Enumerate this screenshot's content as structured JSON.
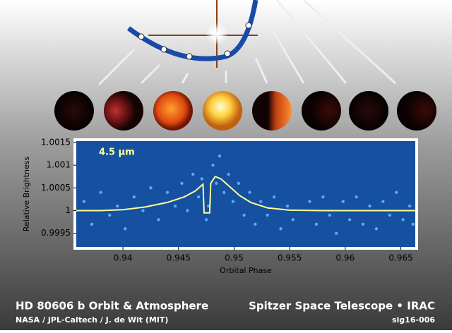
{
  "chart_data": {
    "type": "scatter",
    "label": "4.5 µm",
    "x_label": "Orbital Phase",
    "y_label": "Relative Brightness",
    "xlim": [
      0.9358,
      0.9663
    ],
    "ylim": [
      0.9992,
      1.00153
    ],
    "xticks": [
      0.94,
      0.945,
      0.95,
      0.955,
      0.96,
      0.965
    ],
    "yticks": [
      0.9995,
      1,
      1.0005,
      1.001,
      1.0015
    ],
    "background": "#1650a0",
    "series": [
      {
        "type": "scatter",
        "color": "#55aaff",
        "x": [
          0.9365,
          0.9372,
          0.938,
          0.9388,
          0.9395,
          0.9402,
          0.941,
          0.9418,
          0.9425,
          0.9432,
          0.944,
          0.9447,
          0.9453,
          0.9458,
          0.9463,
          0.9468,
          0.9471,
          0.9475,
          0.9477,
          0.9481,
          0.9484,
          0.9487,
          0.9491,
          0.9495,
          0.9499,
          0.9504,
          0.9509,
          0.9514,
          0.9519,
          0.9524,
          0.953,
          0.9536,
          0.9542,
          0.9548,
          0.9553,
          0.9568,
          0.9574,
          0.958,
          0.9586,
          0.9592,
          0.9598,
          0.9604,
          0.961,
          0.9616,
          0.9622,
          0.9628,
          0.9634,
          0.964,
          0.9646,
          0.9652,
          0.9658,
          0.9661
        ],
        "values": [
          1.0002,
          0.9997,
          1.0004,
          0.9999,
          1.0001,
          0.9996,
          1.0003,
          1.0,
          1.0005,
          0.9998,
          1.0004,
          1.0001,
          1.0006,
          1.0,
          1.0008,
          1.0003,
          1.0007,
          0.9998,
          1.0001,
          1.001,
          1.0006,
          1.0012,
          1.0004,
          1.0008,
          1.0002,
          1.0006,
          0.9999,
          1.0004,
          0.9997,
          1.0002,
          0.9999,
          1.0003,
          0.9996,
          1.0001,
          0.9998,
          1.0002,
          0.9997,
          1.0003,
          0.9999,
          0.9995,
          1.0002,
          0.9998,
          1.0003,
          0.9997,
          1.0001,
          0.9996,
          1.0002,
          0.9999,
          1.0004,
          0.9998,
          1.0001,
          0.9997
        ]
      },
      {
        "type": "line",
        "color": "#ffff99",
        "x": [
          0.9358,
          0.938,
          0.94,
          0.942,
          0.944,
          0.9455,
          0.9465,
          0.9472,
          0.9473,
          0.9478,
          0.9479,
          0.9483,
          0.9488,
          0.9495,
          0.9505,
          0.9515,
          0.953,
          0.955,
          0.958,
          0.9663
        ],
        "values": [
          1.0,
          1.0,
          1.00002,
          1.00008,
          1.00018,
          1.0003,
          1.00043,
          1.00058,
          0.99995,
          0.99995,
          1.0006,
          1.00075,
          1.0007,
          1.00055,
          1.00033,
          1.00018,
          1.00006,
          1.00001,
          1.0,
          1.0
        ]
      }
    ]
  },
  "footer": {
    "title": "HD 80606 b Orbit & Atmosphere",
    "credit": "NASA / JPL-Caltech / J. de Wit (MIT)",
    "mission": "Spitzer Space Telescope • IRAC",
    "id": "sig16-006"
  }
}
